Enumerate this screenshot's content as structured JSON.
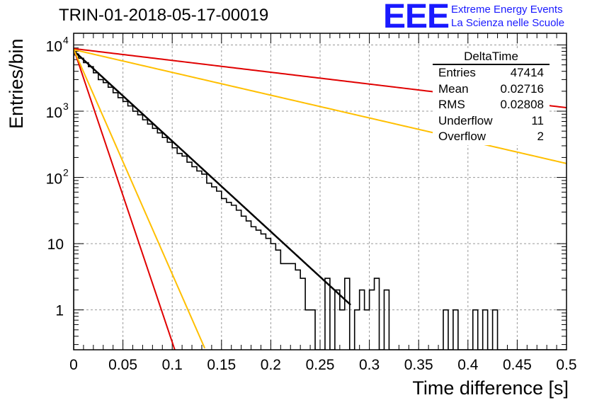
{
  "header": {
    "title": "TRIN-01-2018-05-17-00019",
    "logo_text": "EEE",
    "logo_line1": "Extreme Energy Events",
    "logo_line2": "La Scienza nelle Scuole"
  },
  "stats": {
    "title": "DeltaTime",
    "rows": [
      {
        "label": "Entries",
        "value": "47414"
      },
      {
        "label": "Mean",
        "value": "0.02716"
      },
      {
        "label": "RMS",
        "value": "0.02808"
      },
      {
        "label": "Underflow",
        "value": "11"
      },
      {
        "label": "Overflow",
        "value": "2"
      }
    ]
  },
  "chart_data": {
    "type": "histogram",
    "xlabel": "Time difference [s]",
    "ylabel": "Entries/bin",
    "xlim": [
      0,
      0.5
    ],
    "ylim": [
      0.25,
      15000
    ],
    "yscale": "log",
    "grid": true,
    "x_ticks": [
      "0",
      "0.05",
      "0.1",
      "0.15",
      "0.2",
      "0.25",
      "0.3",
      "0.35",
      "0.4",
      "0.45",
      "0.5"
    ],
    "y_ticks": [
      {
        "value": 10000,
        "base": "10",
        "exp": "4"
      },
      {
        "value": 1000,
        "base": "10",
        "exp": "3"
      },
      {
        "value": 100,
        "base": "10",
        "exp": "2"
      },
      {
        "value": 10,
        "base": "10",
        "exp": ""
      },
      {
        "value": 1,
        "base": "1",
        "exp": ""
      }
    ],
    "bin_width": 0.005,
    "counts": [
      7300,
      6300,
      5400,
      4700,
      3800,
      3000,
      2700,
      2300,
      1900,
      1600,
      1400,
      1200,
      1000,
      880,
      740,
      640,
      550,
      470,
      400,
      340,
      280,
      230,
      210,
      170,
      145,
      125,
      112,
      82,
      72,
      62,
      48,
      42,
      38,
      32,
      26,
      22,
      18,
      16,
      14,
      12,
      10,
      8,
      5,
      5,
      5,
      4,
      3,
      1,
      1,
      0,
      0,
      3,
      0,
      2,
      1,
      3,
      0,
      1,
      2,
      1,
      2,
      3,
      0,
      2,
      0,
      0,
      0,
      0,
      0,
      0,
      0,
      0,
      0,
      0,
      0,
      1,
      0,
      1,
      0,
      0,
      0,
      1,
      0,
      1,
      0,
      1,
      0,
      0,
      0,
      0,
      0,
      0,
      0,
      0,
      0,
      0,
      0,
      0,
      0,
      0
    ],
    "fits": [
      {
        "color": "#000000",
        "width": 2.5,
        "a": 8200,
        "tau": 0.0318,
        "x_end": 0.281
      },
      {
        "color": "#e00000",
        "width": 2,
        "a": 8800,
        "tau": 0.0098,
        "x_end": 0.105
      },
      {
        "color": "#ffbf00",
        "width": 2,
        "a": 8600,
        "tau": 0.0128,
        "x_end": 0.133
      },
      {
        "color": "#e00000",
        "width": 2,
        "a": 8800,
        "tau": 0.2435,
        "x_end": 0.5
      },
      {
        "color": "#ffbf00",
        "width": 2,
        "a": 8500,
        "tau": 0.1263,
        "x_end": 0.5
      }
    ]
  }
}
